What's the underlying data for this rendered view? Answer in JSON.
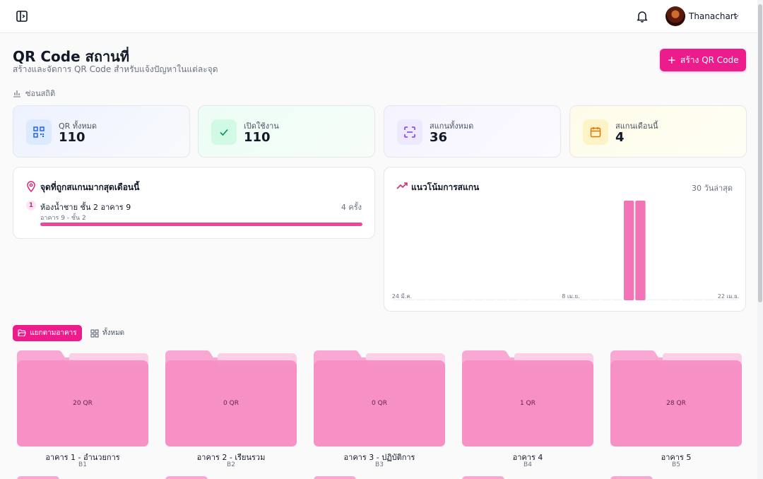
{
  "topbar": {
    "username": "Thanachart",
    "icons": [
      "sidebar-toggle-icon",
      "bell-icon",
      "chevron-down-icon"
    ]
  },
  "header": {
    "title": "QR Code สถานที่",
    "subtitle": "สร้างและจัดการ QR Code สำหรับแจ้งปัญหาในแต่ละจุด",
    "create_button": "สร้าง QR Code",
    "hide_stats": "ซ่อนสถิติ"
  },
  "stats": [
    {
      "label": "QR ทั้งหมด",
      "value": "110",
      "icon": "qr-icon",
      "color": "#2563eb"
    },
    {
      "label": "เปิดใช้งาน",
      "value": "110",
      "icon": "check-icon",
      "color": "#059669"
    },
    {
      "label": "สแกนทั้งหมด",
      "value": "36",
      "icon": "scan-icon",
      "color": "#7c3aed"
    },
    {
      "label": "สแกนเดือนนี้",
      "value": "4",
      "icon": "calendar-icon",
      "color": "#d97706"
    }
  ],
  "top_places": {
    "title": "จุดที่ถูกสแกนมากสุดเดือนนี้",
    "items": [
      {
        "rank": "1",
        "name": "ห้องน้ำชาย ชั้น 2 อาคาร 9",
        "sub": "อาคาร 9 - ชั้น 2",
        "count": "4 ครั้ง",
        "share": 1.0
      }
    ]
  },
  "trend": {
    "title": "แนวโน้มการสแกน",
    "range": "30 วันล่าสุด"
  },
  "chart_data": {
    "type": "bar",
    "x_tick_labels": [
      "24 มี.ค.",
      "8 เม.ย.",
      "22 เม.ย."
    ],
    "values": [
      0,
      0,
      0,
      0,
      0,
      0,
      0,
      0,
      0,
      0,
      0,
      0,
      0,
      0,
      0,
      0,
      0,
      0,
      0,
      0,
      16,
      16,
      0,
      0,
      0,
      0,
      0,
      0,
      0,
      0
    ],
    "ylim": [
      0,
      16
    ],
    "color": "#f472b6"
  },
  "tabs": {
    "by_building": "แยกตามอาคาร",
    "all": "ทั้งหมด"
  },
  "buildings": [
    {
      "count": "20 QR",
      "name": "อาคาร 1 - อำนวยการ",
      "code": "B1"
    },
    {
      "count": "0 QR",
      "name": "อาคาร 2 - เรียนรวม",
      "code": "B2"
    },
    {
      "count": "0 QR",
      "name": "อาคาร 3 - ปฏิบัติการ",
      "code": "B3"
    },
    {
      "count": "1 QR",
      "name": "อาคาร 4",
      "code": "B4"
    },
    {
      "count": "28 QR",
      "name": "อาคาร 5",
      "code": "B5"
    }
  ],
  "colors": {
    "brand": "#ec1c8c",
    "folder": "#f9a8d4"
  }
}
